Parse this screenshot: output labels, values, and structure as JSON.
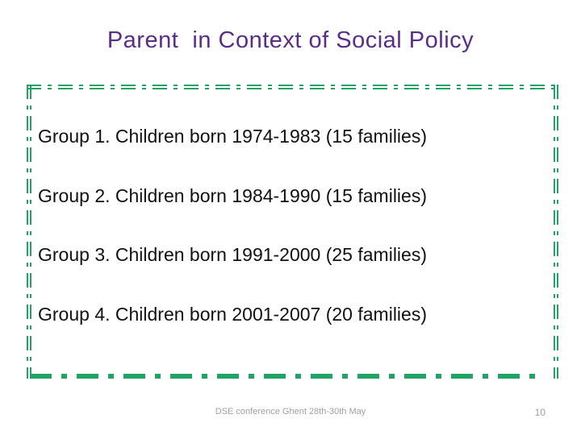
{
  "slide": {
    "title": "Parent  in Context of Social Policy",
    "groups": [
      "Group 1. Children born 1974-1983 (15 families)",
      "Group 2. Children born 1984-1990 (15 families)",
      "Group 3. Children born 1991-2000 (25 families)",
      "Group 4. Children born 2001-2007 (20 families)"
    ],
    "footer": "DSE conference Ghent 28th-30th May",
    "page_number": "10",
    "colors": {
      "title_purple": "#5b2d8a",
      "border_green": "#21a366",
      "body_text": "#111111",
      "footer_gray": "#a0a0a0"
    }
  }
}
